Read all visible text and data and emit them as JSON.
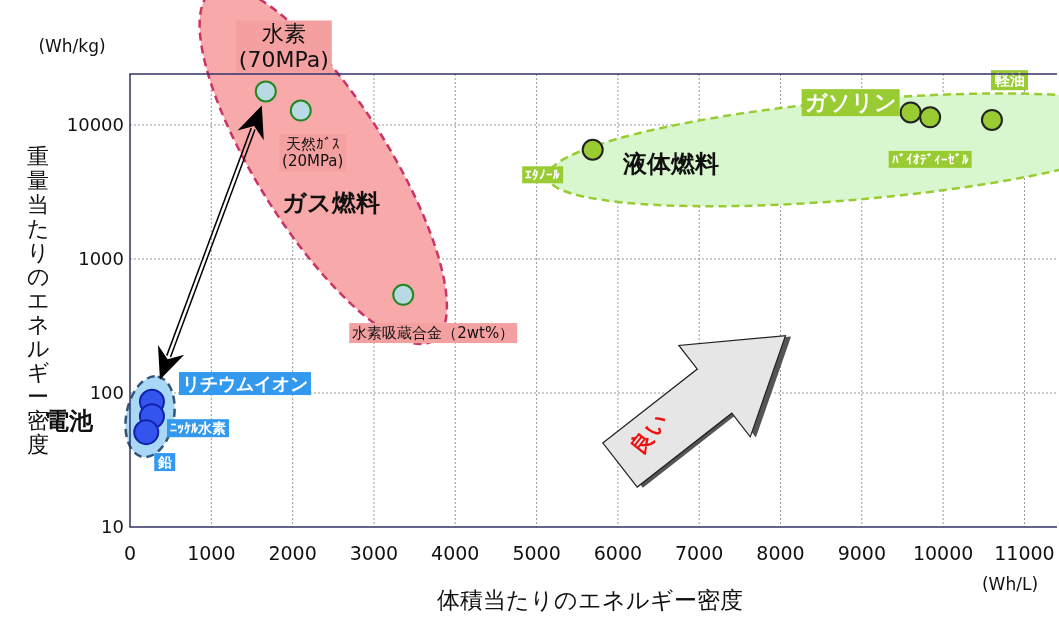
{
  "chart_data": {
    "type": "scatter",
    "xlabel": "体積当たりのエネルギー密度",
    "ylabel": "重量当たりのエネルギー密度",
    "log": "y",
    "xlim": [
      0,
      11400
    ],
    "xticks": [
      0,
      1000,
      2000,
      3000,
      4000,
      5000,
      6000,
      7000,
      8000,
      9000,
      10000,
      11000
    ],
    "ylim": [
      10,
      24000
    ],
    "yticks": [
      10,
      100,
      1000,
      10000
    ],
    "grid": true,
    "marker": "circle",
    "series": [
      {
        "name": "ガス燃料",
        "color": "#b9d9e4",
        "x": [
          1670,
          2100,
          3360
        ],
        "values": [
          17800,
          12800,
          540
        ]
      },
      {
        "name": "液体燃料",
        "color": "#99cc33",
        "x": [
          5690,
          9600,
          9840,
          10600
        ],
        "values": [
          6530,
          12400,
          11400,
          10900
        ]
      },
      {
        "name": "電池",
        "color": "#3355ee",
        "x": [
          270,
          270,
          200
        ],
        "values": [
          86,
          67,
          51
        ]
      }
    ],
    "annotations": [
      {
        "text": "水素\n(70MPa)",
        "x": 1670,
        "y": 17800
      },
      {
        "text": "天然ｶﾞｽ\n(20MPa)",
        "x": 2100,
        "y": 12800
      },
      {
        "text": "水素吸蔵合金（2wt%）",
        "x": 3360,
        "y": 540
      },
      {
        "text": "ｴﾀﾉｰﾙ",
        "x": 5690,
        "y": 6530
      },
      {
        "text": "ガソリン",
        "x": 9600,
        "y": 12400
      },
      {
        "text": "ﾊﾞｲｵﾃﾞｨｰｾﾞﾙ",
        "x": 9840,
        "y": 11400
      },
      {
        "text": "軽油",
        "x": 10600,
        "y": 10900
      },
      {
        "text": "リチウムイオン",
        "x": 270,
        "y": 86
      },
      {
        "text": "ﾆｯｹﾙ水素",
        "x": 270,
        "y": 67
      },
      {
        "text": "鉛",
        "x": 200,
        "y": 51
      },
      "良い",
      "(Wh/kg)",
      "(Wh/L)"
    ]
  }
}
